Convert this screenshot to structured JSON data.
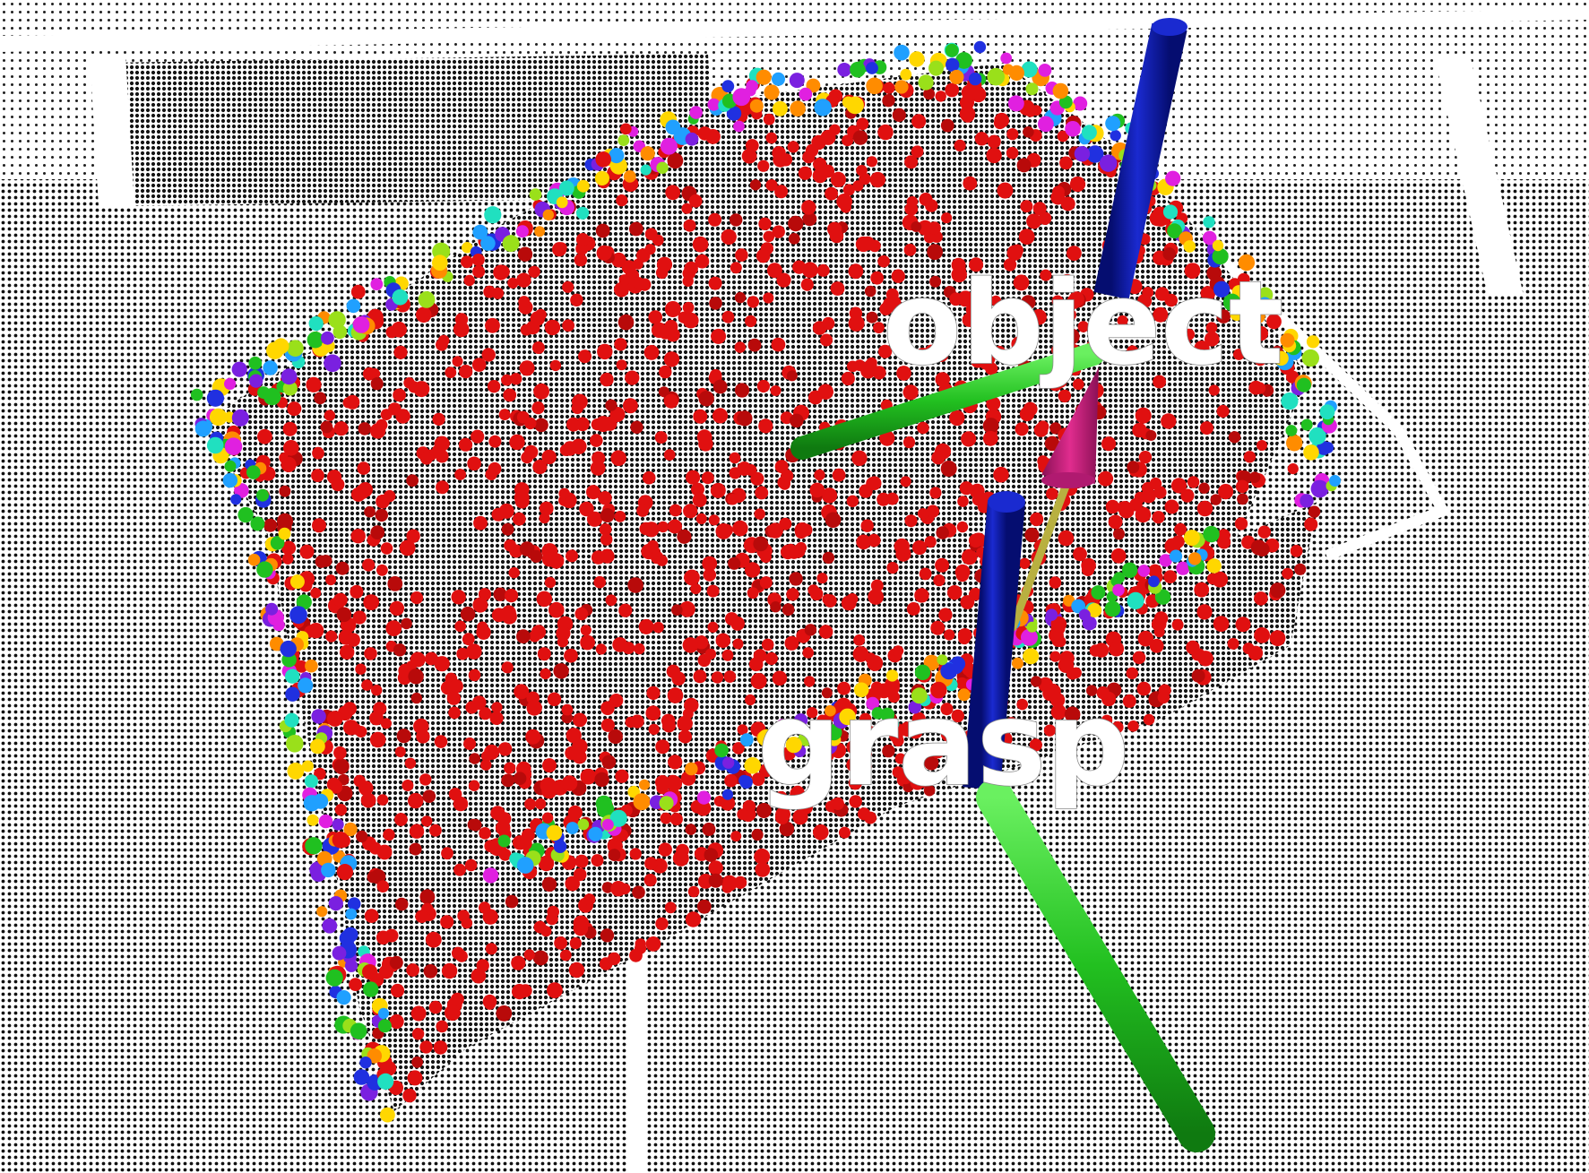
{
  "labels": {
    "object": "object",
    "grasp": "grasp"
  },
  "colors": {
    "background": "#ffffff",
    "cloud_points": "#111111",
    "cluster_main": "#e01010",
    "axis_z": "#0a1aa8",
    "axis_y": "#22c020",
    "approach_arrow": "#c8207a",
    "arrow_shaft": "#b8b040",
    "label_text": "#ffffff",
    "edge_palette": [
      "#e01010",
      "#ff8c00",
      "#ffd700",
      "#9ae01a",
      "#20c020",
      "#20e0c0",
      "#20a0ff",
      "#2030e0",
      "#7a20e0",
      "#e020e0"
    ]
  },
  "icons": {
    "object_frame": "coordinate-frame-icon",
    "grasp_frame": "coordinate-frame-icon",
    "approach": "arrow-cone-icon"
  }
}
